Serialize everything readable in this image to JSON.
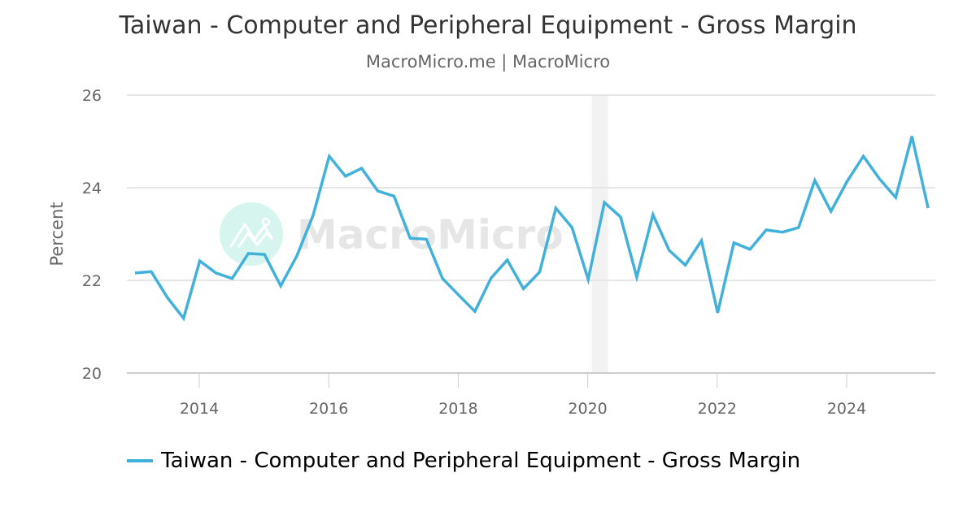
{
  "header": {
    "title": "Taiwan - Computer and Peripheral Equipment - Gross Margin",
    "subtitle": "MacroMicro.me | MacroMicro"
  },
  "watermark": {
    "text": "MacroMicro"
  },
  "legend": {
    "items": [
      {
        "label": "Taiwan - Computer and Peripheral Equipment - Gross Margin",
        "color": "#41b0da"
      }
    ]
  },
  "colors": {
    "line": "#41b0da",
    "grid": "#e6e6e6",
    "recession_band": "#f2f2f2",
    "watermark_circle": "#d6f5ef"
  },
  "chart_data": {
    "type": "line",
    "title": "Taiwan - Computer and Peripheral Equipment - Gross Margin",
    "subtitle": "MacroMicro.me | MacroMicro",
    "xlabel": "",
    "ylabel": "Percent",
    "ylim": [
      20,
      26
    ],
    "yticks": [
      20,
      22,
      24,
      26
    ],
    "xticks": [
      "2014",
      "2016",
      "2018",
      "2020",
      "2022",
      "2024"
    ],
    "grid": true,
    "legend_position": "bottom",
    "shaded_regions": [
      {
        "start": "2020-Q1",
        "end": "2020-Q2",
        "label": "recession"
      }
    ],
    "x": [
      "2013-Q1",
      "2013-Q2",
      "2013-Q3",
      "2013-Q4",
      "2014-Q1",
      "2014-Q2",
      "2014-Q3",
      "2014-Q4",
      "2015-Q1",
      "2015-Q2",
      "2015-Q3",
      "2015-Q4",
      "2016-Q1",
      "2016-Q2",
      "2016-Q3",
      "2016-Q4",
      "2017-Q1",
      "2017-Q2",
      "2017-Q3",
      "2017-Q4",
      "2018-Q1",
      "2018-Q2",
      "2018-Q3",
      "2018-Q4",
      "2019-Q1",
      "2019-Q2",
      "2019-Q3",
      "2019-Q4",
      "2020-Q1",
      "2020-Q2",
      "2020-Q3",
      "2020-Q4",
      "2021-Q1",
      "2021-Q2",
      "2021-Q3",
      "2021-Q4",
      "2022-Q1",
      "2022-Q2",
      "2022-Q3",
      "2022-Q4",
      "2023-Q1",
      "2023-Q2",
      "2023-Q3",
      "2023-Q4",
      "2024-Q1",
      "2024-Q2",
      "2024-Q3",
      "2024-Q4",
      "2025-Q1",
      "2025-Q2"
    ],
    "series": [
      {
        "name": "Taiwan - Computer and Peripheral Equipment - Gross Margin",
        "values": [
          22.16,
          22.19,
          21.63,
          21.18,
          22.42,
          22.16,
          22.04,
          22.58,
          22.56,
          21.88,
          22.53,
          23.4,
          24.68,
          24.25,
          24.42,
          23.93,
          23.82,
          22.91,
          22.89,
          22.04,
          21.68,
          21.33,
          22.05,
          22.44,
          21.82,
          22.18,
          23.56,
          23.14,
          22.02,
          23.68,
          23.37,
          22.07,
          23.42,
          22.65,
          22.33,
          22.86,
          21.3,
          22.81,
          22.67,
          23.09,
          23.04,
          23.14,
          24.16,
          23.49,
          24.14,
          24.68,
          24.19,
          23.79,
          25.11,
          23.56
        ]
      }
    ]
  }
}
